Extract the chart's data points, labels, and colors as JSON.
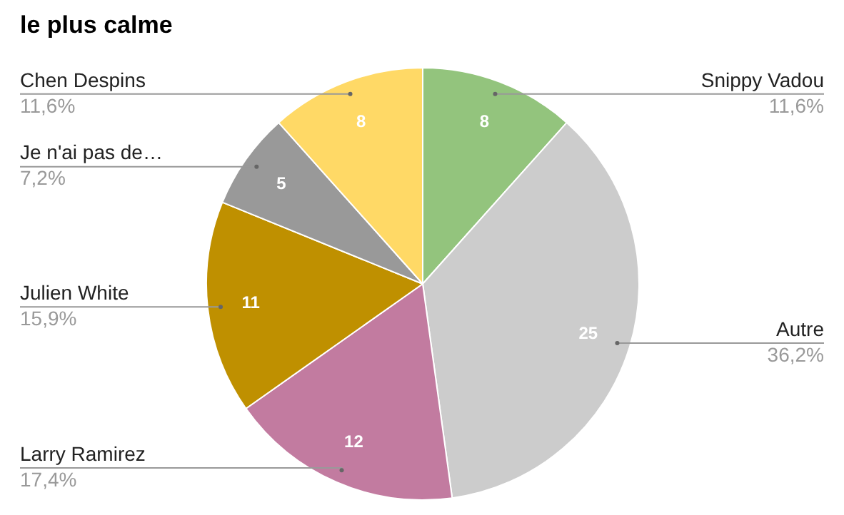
{
  "chart_data": {
    "type": "pie",
    "title": "le plus calme",
    "categories": [
      "Snippy Vadou",
      "Autre",
      "Larry Ramirez",
      "Julien White",
      "Je n'ai pas de…",
      "Chen Despins"
    ],
    "values": [
      8,
      25,
      12,
      11,
      5,
      8
    ],
    "colors": [
      "#93c47d",
      "#cccccc",
      "#c27ba0",
      "#bf9000",
      "#999999",
      "#ffd966"
    ],
    "value_labels": [
      "8",
      "25",
      "12",
      "11",
      "5",
      "8"
    ],
    "annotations": [
      "11,6%",
      "36,2%",
      "17,4%",
      "15,9%",
      "7,2%",
      "11,6%"
    ],
    "legend": false
  }
}
